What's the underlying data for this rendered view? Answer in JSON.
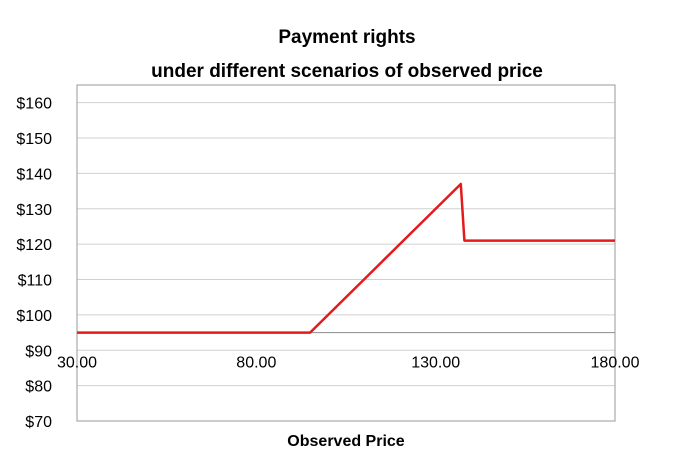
{
  "chart_data": {
    "type": "line",
    "title": "Payment rights",
    "subtitle": "under different scenarios of observed price",
    "xlabel": "Observed Price",
    "ylabel": "",
    "xlim": [
      30,
      180
    ],
    "ylim": [
      70,
      165
    ],
    "x_ticks": [
      30,
      80,
      130,
      180
    ],
    "x_tick_labels": [
      "30.00",
      "80.00",
      "130.00",
      "180.00"
    ],
    "x_axis_crosses_at": 95,
    "y_ticks": [
      70,
      80,
      90,
      100,
      110,
      120,
      130,
      140,
      150,
      160
    ],
    "y_tick_labels": [
      "$70",
      "$80",
      "$90",
      "$100",
      "$110",
      "$120",
      "$130",
      "$140",
      "$150",
      "$160"
    ],
    "grid": true,
    "legend": "none",
    "line_color": "#e31b1b",
    "series": [
      {
        "x": [
          30,
          95,
          135,
          137,
          138,
          180
        ],
        "y": [
          95,
          95,
          135,
          137,
          121,
          121
        ]
      }
    ]
  }
}
